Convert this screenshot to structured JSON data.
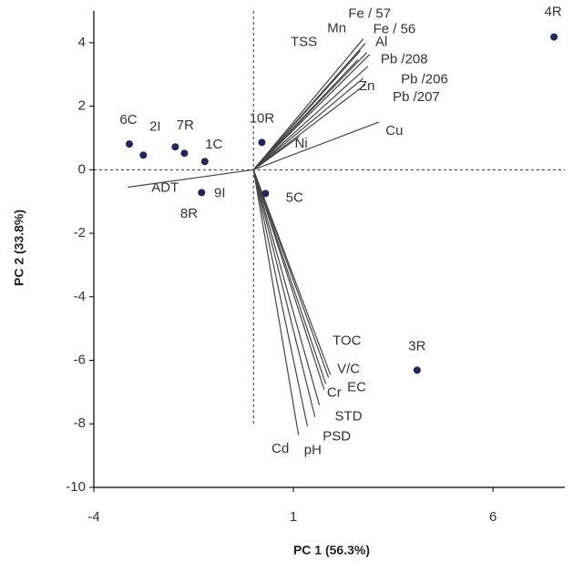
{
  "chart_data": {
    "type": "biplot",
    "x_label": "PC 1 (56.3%)",
    "y_label": "PC 2 (33.8%)",
    "xlim": [
      -4,
      7.8
    ],
    "ylim": [
      -10,
      5
    ],
    "xticks": [
      -4,
      1,
      6
    ],
    "yticks": [
      -10,
      -8,
      -6,
      -4,
      -2,
      0,
      2,
      4
    ],
    "points": {
      "color": "#23235e",
      "labels": [
        "6C",
        "2I",
        "7R",
        "8R",
        "1C",
        "9I",
        "10R",
        "5C",
        "3R",
        "4R"
      ],
      "x": [
        -3.11,
        -2.76,
        -1.96,
        -1.73,
        -1.22,
        -1.3,
        0.21,
        0.3,
        4.1,
        7.53
      ],
      "y": [
        0.81,
        0.46,
        0.72,
        0.52,
        0.26,
        -0.72,
        0.86,
        -0.75,
        -6.31,
        4.18
      ]
    },
    "loadings": {
      "color": "#444444",
      "labels": [
        "Fe / 57",
        "Fe / 56",
        "Mn",
        "Al",
        "TSS",
        "Pb /208",
        "Pb /206",
        "Zn",
        "Pb /207",
        "Cu",
        "Ni",
        "ADT",
        "TOC",
        "V/C",
        "EC",
        "Cr",
        "STD",
        "PSD",
        "pH",
        "Cd"
      ],
      "x": [
        2.75,
        2.8,
        2.68,
        2.84,
        2.61,
        2.91,
        2.87,
        2.75,
        2.8,
        3.14,
        1.15,
        -3.15,
        1.93,
        1.88,
        1.81,
        1.77,
        1.65,
        1.54,
        1.35,
        1.13
      ],
      "y": [
        4.12,
        3.98,
        3.75,
        3.69,
        3.46,
        3.63,
        3.26,
        2.88,
        2.68,
        1.5,
        1.04,
        -0.55,
        -6.46,
        -6.54,
        -6.74,
        -6.92,
        -7.41,
        -7.78,
        -8.07,
        -8.36
      ]
    }
  }
}
